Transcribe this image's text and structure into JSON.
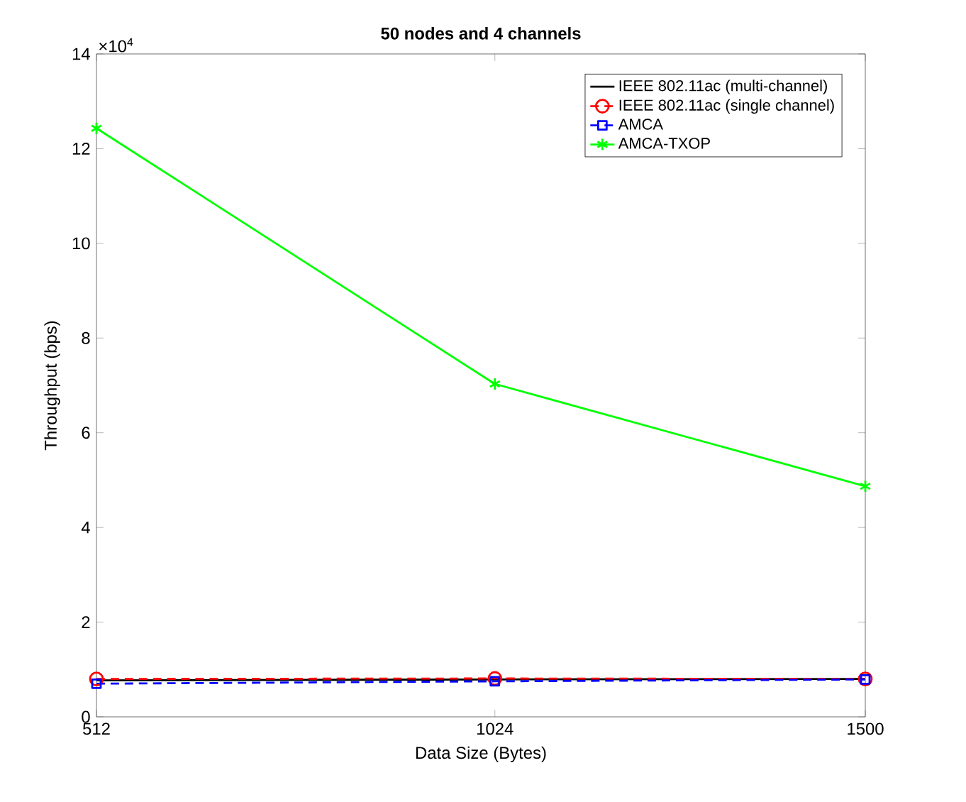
{
  "chart_data": {
    "type": "line",
    "title": "50 nodes and 4 channels",
    "xlabel": "Data Size (Bytes)",
    "ylabel": "Throughput (bps)",
    "annotations": [
      "×10$^{4}$"
    ],
    "x": [
      512,
      1024,
      1500
    ],
    "xlim": [
      512,
      1500
    ],
    "xticks": [
      512,
      1024,
      1500
    ],
    "ylim": [
      0,
      14
    ],
    "yticks": [
      0,
      2,
      4,
      6,
      8,
      10,
      12,
      14
    ],
    "grid": false,
    "legend": "top right",
    "series": [
      {
        "name": "IEEE 802.11ac (multi-channel)",
        "color": "#000000",
        "values": [
          0.77,
          0.79,
          0.8
        ],
        "marker": "none",
        "line_style": "solid"
      },
      {
        "name": "IEEE 802.11ac (single channel)",
        "color": "#ff0000",
        "values": [
          0.8,
          0.81,
          0.8
        ],
        "marker": "circle",
        "line_style": "dashed"
      },
      {
        "name": "AMCA",
        "color": "#0000ff",
        "values": [
          0.7,
          0.75,
          0.79
        ],
        "marker": "square",
        "line_style": "dashed"
      },
      {
        "name": "AMCA-TXOP",
        "color": "#00ff00",
        "values": [
          12.43,
          7.03,
          4.87
        ],
        "marker": "cross",
        "line_style": "solid"
      }
    ]
  }
}
